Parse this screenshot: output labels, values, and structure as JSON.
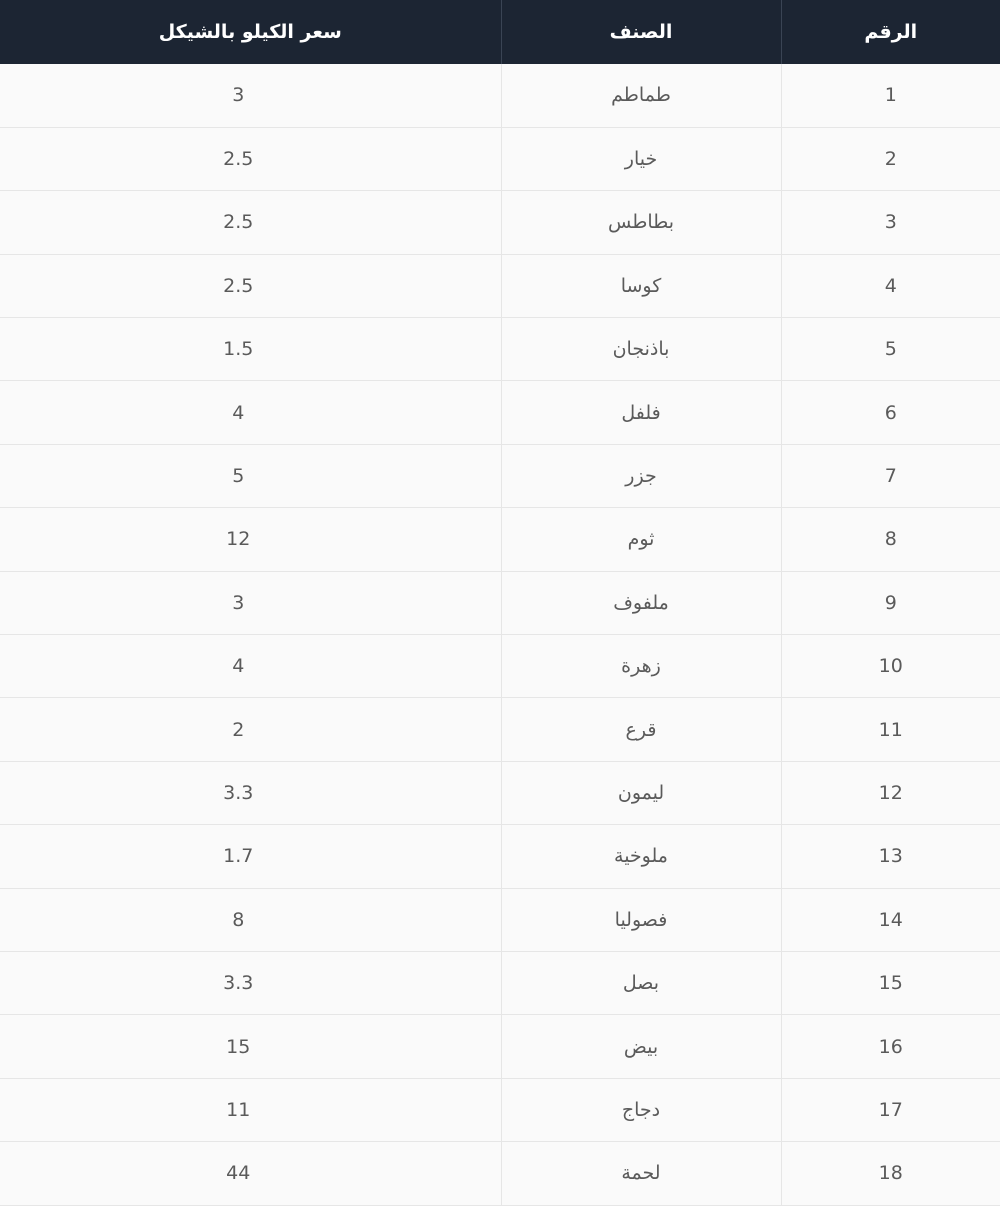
{
  "table": {
    "headers": {
      "price": "سعر الكيلو بالشيكل",
      "item": "الصنف",
      "number": "الرقم"
    },
    "rows": [
      {
        "number": "1",
        "item": "طماطم",
        "price": "3"
      },
      {
        "number": "2",
        "item": "خيار",
        "price": "2.5"
      },
      {
        "number": "3",
        "item": "بطاطس",
        "price": "2.5"
      },
      {
        "number": "4",
        "item": "كوسا",
        "price": "2.5"
      },
      {
        "number": "5",
        "item": "باذنجان",
        "price": "1.5"
      },
      {
        "number": "6",
        "item": "فلفل",
        "price": "4"
      },
      {
        "number": "7",
        "item": "جزر",
        "price": "5"
      },
      {
        "number": "8",
        "item": "ثوم",
        "price": "12"
      },
      {
        "number": "9",
        "item": "ملفوف",
        "price": "3"
      },
      {
        "number": "10",
        "item": "زهرة",
        "price": "4"
      },
      {
        "number": "11",
        "item": "قرع",
        "price": "2"
      },
      {
        "number": "12",
        "item": "ليمون",
        "price": "3.3"
      },
      {
        "number": "13",
        "item": "ملوخية",
        "price": "1.7"
      },
      {
        "number": "14",
        "item": "فصوليا",
        "price": "8"
      },
      {
        "number": "15",
        "item": "بصل",
        "price": "3.3"
      },
      {
        "number": "16",
        "item": "بيض",
        "price": "15"
      },
      {
        "number": "17",
        "item": "دجاج",
        "price": "11"
      },
      {
        "number": "18",
        "item": "لحمة",
        "price": "44"
      }
    ]
  },
  "colors": {
    "header_bg": "#1c2533",
    "header_text": "#ffffff",
    "row_bg": "#fafafa",
    "cell_text": "#5a5a5a"
  }
}
